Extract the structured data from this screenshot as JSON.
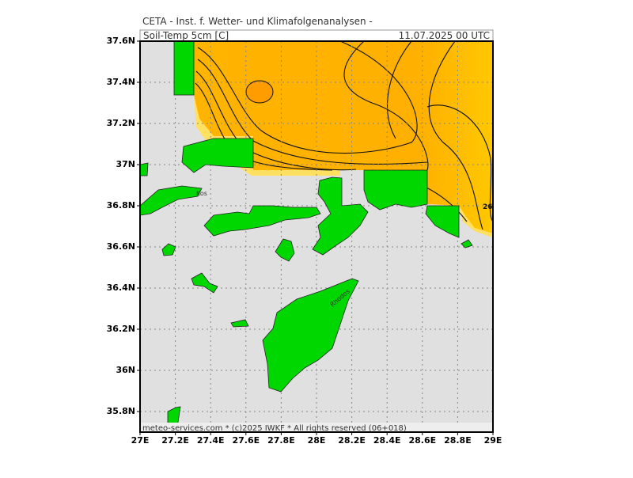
{
  "header": {
    "title": "CETA - Inst. f. Wetter- und Klimafolgenanalysen -",
    "variable": "Soil-Temp 5cm [C]",
    "time": "11.07.2025 00 UTC"
  },
  "map": {
    "lon_ticks": [
      {
        "value": 27,
        "label": "27E"
      },
      {
        "value": 27.2,
        "label": "27.2E"
      },
      {
        "value": 27.4,
        "label": "27.4E"
      },
      {
        "value": 27.6,
        "label": "27.6E"
      },
      {
        "value": 27.8,
        "label": "27.8E"
      },
      {
        "value": 28,
        "label": "28E"
      },
      {
        "value": 28.2,
        "label": "28.2E"
      },
      {
        "value": 28.4,
        "label": "28.4E"
      },
      {
        "value": 28.6,
        "label": "28.6E"
      },
      {
        "value": 28.8,
        "label": "28.8E"
      },
      {
        "value": 29,
        "label": "29E"
      }
    ],
    "lat_ticks": [
      {
        "value": 37.6,
        "label": "37.6N"
      },
      {
        "value": 37.4,
        "label": "37.4N"
      },
      {
        "value": 37.2,
        "label": "37.2N"
      },
      {
        "value": 37,
        "label": "37N"
      },
      {
        "value": 36.8,
        "label": "36.8N"
      },
      {
        "value": 36.6,
        "label": "36.6N"
      },
      {
        "value": 36.4,
        "label": "36.4N"
      },
      {
        "value": 36.2,
        "label": "36.2N"
      },
      {
        "value": 36,
        "label": "36N"
      },
      {
        "value": 35.8,
        "label": "35.8N"
      }
    ],
    "place_labels": [
      "Kos",
      "Rhodos"
    ],
    "contour_label": "26",
    "footer": "meteo-services.com * (c)2025 IWKF * All rights reserved (06+018)"
  }
}
